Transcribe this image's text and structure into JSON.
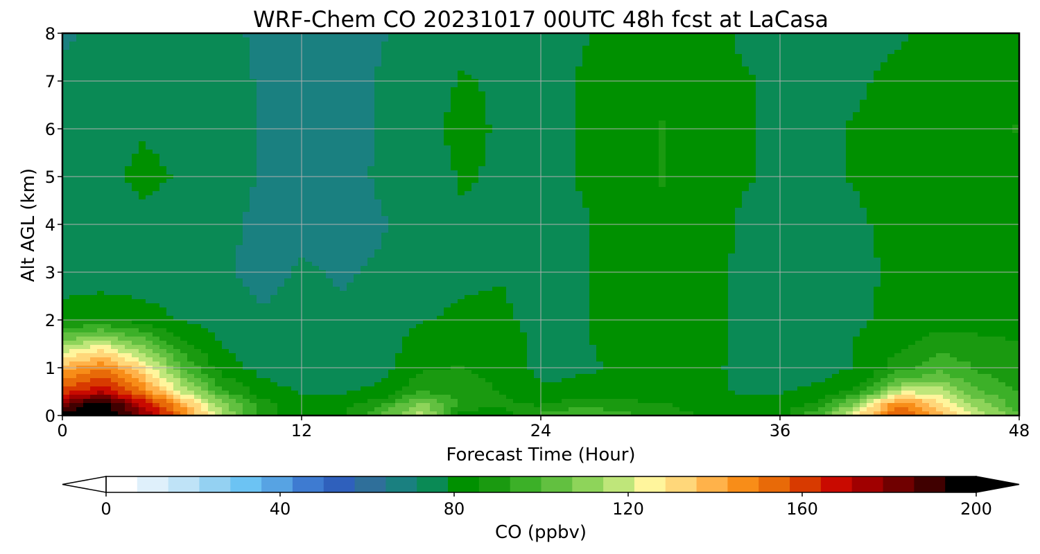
{
  "chart_data": {
    "type": "heatmap",
    "title": "WRF-Chem CO  20231017 00UTC 48h fcst at LaCasa",
    "xlabel": "Forecast Time (Hour)",
    "ylabel": "Alt AGL (km)",
    "xlim": [
      0,
      48
    ],
    "ylim": [
      0,
      8
    ],
    "x_ticks": [
      "0",
      "12",
      "24",
      "36",
      "48"
    ],
    "y_ticks": [
      "0",
      "1",
      "2",
      "3",
      "4",
      "5",
      "6",
      "7",
      "8"
    ],
    "grid": true,
    "colorbar": {
      "label": "CO  (ppbv)",
      "range": [
        0,
        200
      ],
      "ticks": [
        "0",
        "40",
        "80",
        "120",
        "160",
        "200"
      ],
      "extend": "both",
      "orientation": "horizontal",
      "colors": [
        "#ffffff",
        "#dff0fb",
        "#bfe3f7",
        "#94d1f2",
        "#6cc3f3",
        "#57a3e3",
        "#3e7bd1",
        "#2f60bc",
        "#2f6f9a",
        "#1a8080",
        "#0a8a55",
        "#009000",
        "#1a9a10",
        "#3cb028",
        "#62c040",
        "#8ed45a",
        "#bfe67a",
        "#fff59c",
        "#ffd77a",
        "#ffb24a",
        "#f88d18",
        "#e86a08",
        "#d83a00",
        "#c90a00",
        "#a00000",
        "#700000",
        "#400000",
        "#000000"
      ]
    },
    "x_hours": [
      0,
      2,
      4,
      6,
      8,
      10,
      12,
      14,
      16,
      18,
      20,
      22,
      24,
      26,
      28,
      30,
      32,
      34,
      36,
      38,
      40,
      42,
      44,
      46,
      48
    ],
    "y_km": [
      0,
      0.25,
      0.5,
      0.75,
      1,
      1.5,
      2,
      3,
      4,
      5,
      6,
      7,
      8
    ],
    "co_ppbv": [
      [
        200,
        200,
        180,
        150,
        115,
        90,
        80,
        85,
        100,
        120,
        80,
        82,
        95,
        100,
        95,
        90,
        85,
        80,
        82,
        100,
        130,
        160,
        140,
        120,
        100
      ],
      [
        180,
        200,
        170,
        140,
        110,
        88,
        80,
        82,
        90,
        110,
        92,
        88,
        84,
        90,
        88,
        86,
        83,
        80,
        81,
        88,
        110,
        150,
        130,
        110,
        95
      ],
      [
        160,
        170,
        150,
        120,
        95,
        82,
        78,
        78,
        80,
        92,
        90,
        85,
        80,
        82,
        80,
        80,
        80,
        78,
        78,
        80,
        90,
        120,
        118,
        100,
        92
      ],
      [
        150,
        160,
        140,
        110,
        88,
        79,
        76,
        76,
        78,
        88,
        88,
        84,
        78,
        79,
        79,
        80,
        80,
        78,
        77,
        78,
        82,
        100,
        105,
        95,
        90
      ],
      [
        140,
        150,
        130,
        100,
        82,
        76,
        75,
        74,
        76,
        85,
        86,
        83,
        77,
        78,
        79,
        80,
        81,
        77,
        76,
        77,
        79,
        90,
        98,
        92,
        88
      ],
      [
        110,
        120,
        105,
        88,
        78,
        74,
        74,
        73,
        74,
        83,
        84,
        82,
        77,
        78,
        80,
        82,
        82,
        77,
        76,
        77,
        79,
        84,
        90,
        88,
        86
      ],
      [
        84,
        86,
        82,
        78,
        75,
        72,
        73,
        72,
        73,
        78,
        80,
        80,
        76,
        78,
        80,
        83,
        82,
        77,
        77,
        77,
        78,
        80,
        82,
        82,
        82
      ],
      [
        72,
        73,
        74,
        74,
        72,
        70,
        72,
        71,
        72,
        74,
        77,
        78,
        76,
        78,
        80,
        84,
        82,
        77,
        77,
        77,
        78,
        79,
        80,
        80,
        81
      ],
      [
        73,
        75,
        77,
        76,
        73,
        70,
        70,
        70,
        71,
        74,
        78,
        78,
        76,
        78,
        80,
        85,
        84,
        78,
        77,
        77,
        78,
        80,
        82,
        82,
        84
      ],
      [
        74,
        77,
        80,
        78,
        74,
        71,
        70,
        70,
        72,
        76,
        79,
        78,
        77,
        79,
        81,
        86,
        84,
        79,
        78,
        78,
        79,
        82,
        84,
        84,
        85
      ],
      [
        73,
        76,
        78,
        77,
        74,
        71,
        69,
        69,
        72,
        77,
        80,
        78,
        77,
        79,
        82,
        86,
        83,
        79,
        78,
        78,
        79,
        82,
        84,
        84,
        86
      ],
      [
        72,
        74,
        76,
        75,
        73,
        71,
        69,
        69,
        72,
        76,
        79,
        78,
        77,
        79,
        82,
        85,
        82,
        79,
        78,
        77,
        78,
        80,
        83,
        84,
        85
      ],
      [
        71,
        72,
        73,
        73,
        72,
        71,
        69,
        69,
        71,
        74,
        77,
        77,
        76,
        78,
        80,
        83,
        81,
        78,
        77,
        76,
        77,
        78,
        80,
        81,
        82
      ]
    ]
  }
}
